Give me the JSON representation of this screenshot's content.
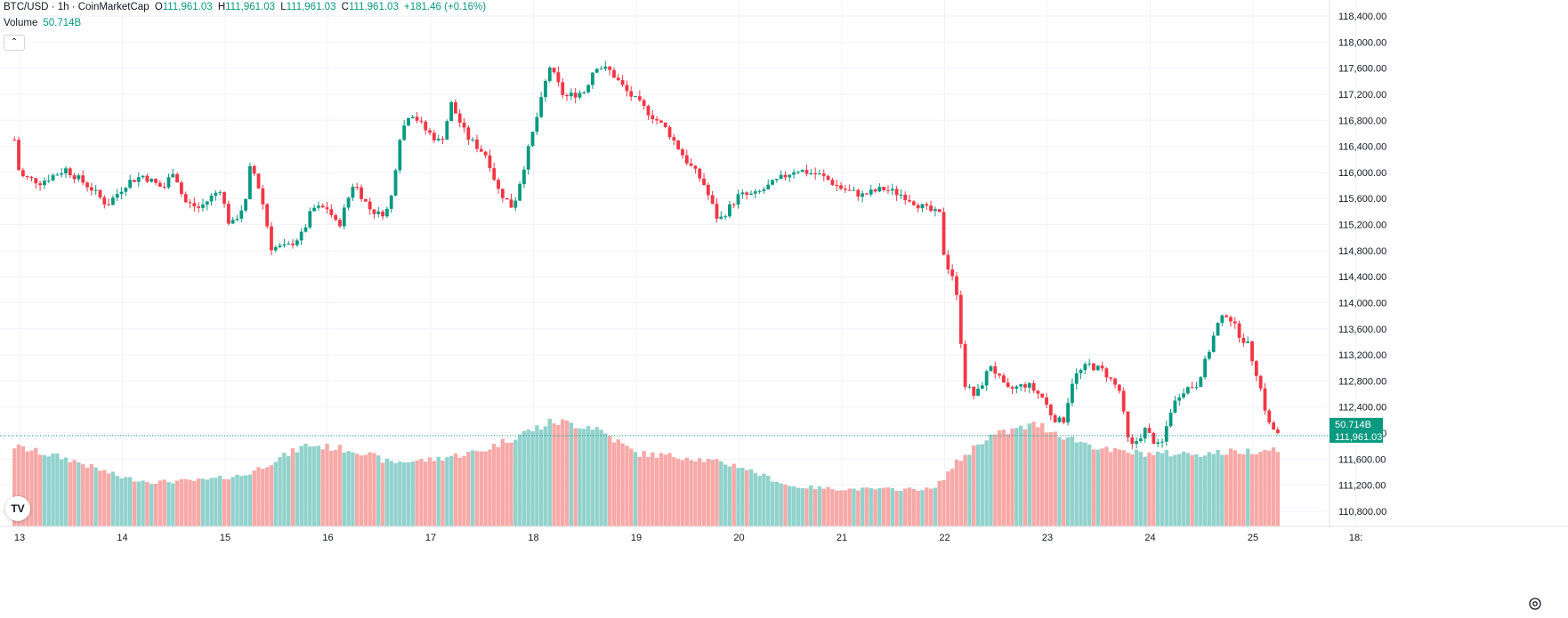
{
  "header": {
    "symbol": "BTC/USD · 1h · CoinMarketCap",
    "o_label": "O",
    "o_value": "111,961.03",
    "h_label": "H",
    "h_value": "111,961.03",
    "l_label": "L",
    "l_value": "111,961.03",
    "c_label": "C",
    "c_value": "111,961.03",
    "change": "+181.46 (+0.16%)"
  },
  "volume_legend": {
    "label": "Volume",
    "value": "50.714B"
  },
  "collapse_icon": "chevron-up-icon",
  "logo": "tradingview-logo",
  "colors": {
    "up": "#089981",
    "down": "#f23645",
    "vol_up": "#92d2cc",
    "vol_down": "#f7a9a7",
    "grid": "#f0f3fa",
    "text": "#131722"
  },
  "price_labels": {
    "volume_tag": "50.714B",
    "last_price_tag": "111,961.03"
  },
  "chart_data": {
    "type": "candlestick",
    "title": "BTC/USD · 1h · CoinMarketCap",
    "y_axis": {
      "ticks": [
        110800,
        111200,
        111600,
        112000,
        112400,
        112800,
        113200,
        113600,
        114000,
        114400,
        114800,
        115200,
        115600,
        116000,
        116400,
        116800,
        117200,
        117600,
        118000,
        118400
      ],
      "tick_labels": [
        "110,800.00",
        "111,200.00",
        "111,600.00",
        "112,000.00",
        "112,400.00",
        "112,800.00",
        "113,200.00",
        "113,600.00",
        "114,000.00",
        "114,400.00",
        "114,800.00",
        "115,200.00",
        "115,600.00",
        "116,000.00",
        "116,400.00",
        "116,800.00",
        "117,200.00",
        "117,600.00",
        "118,000.00",
        "118,400.00"
      ],
      "range": [
        110600,
        118600
      ]
    },
    "x_axis": {
      "tick_labels": [
        "13",
        "14",
        "15",
        "16",
        "17",
        "18",
        "19",
        "20",
        "21",
        "22",
        "23",
        "24",
        "25",
        "18:"
      ]
    },
    "last_price": 111961.03,
    "close_points": [
      {
        "day": 12.95,
        "close": 116500
      },
      {
        "day": 13.0,
        "close": 115950
      },
      {
        "day": 13.2,
        "close": 115850
      },
      {
        "day": 13.45,
        "close": 116050
      },
      {
        "day": 13.7,
        "close": 115750
      },
      {
        "day": 13.85,
        "close": 115500
      },
      {
        "day": 14.05,
        "close": 115850
      },
      {
        "day": 14.2,
        "close": 115950
      },
      {
        "day": 14.4,
        "close": 115750
      },
      {
        "day": 14.5,
        "close": 116050
      },
      {
        "day": 14.6,
        "close": 115550
      },
      {
        "day": 14.75,
        "close": 115450
      },
      {
        "day": 14.95,
        "close": 115750
      },
      {
        "day": 15.05,
        "close": 115150
      },
      {
        "day": 15.2,
        "close": 115550
      },
      {
        "day": 15.25,
        "close": 116150
      },
      {
        "day": 15.35,
        "close": 115650
      },
      {
        "day": 15.45,
        "close": 114850
      },
      {
        "day": 15.6,
        "close": 114850
      },
      {
        "day": 15.75,
        "close": 115050
      },
      {
        "day": 15.85,
        "close": 115450
      },
      {
        "day": 16.0,
        "close": 115450
      },
      {
        "day": 16.1,
        "close": 115150
      },
      {
        "day": 16.25,
        "close": 115850
      },
      {
        "day": 16.4,
        "close": 115450
      },
      {
        "day": 16.5,
        "close": 115350
      },
      {
        "day": 16.6,
        "close": 115450
      },
      {
        "day": 16.7,
        "close": 116550
      },
      {
        "day": 16.8,
        "close": 116950
      },
      {
        "day": 16.95,
        "close": 116650
      },
      {
        "day": 17.1,
        "close": 116450
      },
      {
        "day": 17.2,
        "close": 117050
      },
      {
        "day": 17.35,
        "close": 116550
      },
      {
        "day": 17.55,
        "close": 116250
      },
      {
        "day": 17.65,
        "close": 115750
      },
      {
        "day": 17.8,
        "close": 115450
      },
      {
        "day": 17.9,
        "close": 116050
      },
      {
        "day": 18.0,
        "close": 116650
      },
      {
        "day": 18.1,
        "close": 117250
      },
      {
        "day": 18.15,
        "close": 117650
      },
      {
        "day": 18.3,
        "close": 117150
      },
      {
        "day": 18.5,
        "close": 117250
      },
      {
        "day": 18.6,
        "close": 117650
      },
      {
        "day": 18.75,
        "close": 117550
      },
      {
        "day": 18.9,
        "close": 117250
      },
      {
        "day": 19.1,
        "close": 116950
      },
      {
        "day": 19.3,
        "close": 116650
      },
      {
        "day": 19.5,
        "close": 116150
      },
      {
        "day": 19.65,
        "close": 115850
      },
      {
        "day": 19.8,
        "close": 115250
      },
      {
        "day": 20.0,
        "close": 115650
      },
      {
        "day": 20.15,
        "close": 115650
      },
      {
        "day": 20.35,
        "close": 115850
      },
      {
        "day": 20.55,
        "close": 116050
      },
      {
        "day": 20.8,
        "close": 115950
      },
      {
        "day": 21.0,
        "close": 115750
      },
      {
        "day": 21.2,
        "close": 115650
      },
      {
        "day": 21.4,
        "close": 115750
      },
      {
        "day": 21.6,
        "close": 115650
      },
      {
        "day": 21.8,
        "close": 115450
      },
      {
        "day": 21.95,
        "close": 115350
      },
      {
        "day": 22.0,
        "close": 114650
      },
      {
        "day": 22.1,
        "close": 114350
      },
      {
        "day": 22.2,
        "close": 112750
      },
      {
        "day": 22.3,
        "close": 112550
      },
      {
        "day": 22.45,
        "close": 113050
      },
      {
        "day": 22.6,
        "close": 112650
      },
      {
        "day": 22.8,
        "close": 112750
      },
      {
        "day": 22.95,
        "close": 112550
      },
      {
        "day": 23.05,
        "close": 112250
      },
      {
        "day": 23.15,
        "close": 112150
      },
      {
        "day": 23.25,
        "close": 112850
      },
      {
        "day": 23.4,
        "close": 113050
      },
      {
        "day": 23.55,
        "close": 112950
      },
      {
        "day": 23.7,
        "close": 112650
      },
      {
        "day": 23.8,
        "close": 111750
      },
      {
        "day": 23.95,
        "close": 112050
      },
      {
        "day": 24.1,
        "close": 111750
      },
      {
        "day": 24.2,
        "close": 112350
      },
      {
        "day": 24.3,
        "close": 112650
      },
      {
        "day": 24.45,
        "close": 112750
      },
      {
        "day": 24.55,
        "close": 113150
      },
      {
        "day": 24.65,
        "close": 113650
      },
      {
        "day": 24.75,
        "close": 113850
      },
      {
        "day": 24.85,
        "close": 113550
      },
      {
        "day": 24.95,
        "close": 113350
      },
      {
        "day": 25.05,
        "close": 112850
      },
      {
        "day": 25.15,
        "close": 112150
      },
      {
        "day": 25.25,
        "close": 111961.03
      }
    ],
    "volume_profile": [
      {
        "day": 12.95,
        "h": 0.9
      },
      {
        "day": 13.5,
        "h": 0.75
      },
      {
        "day": 14.0,
        "h": 0.55
      },
      {
        "day": 14.3,
        "h": 0.5
      },
      {
        "day": 14.8,
        "h": 0.52
      },
      {
        "day": 15.2,
        "h": 0.58
      },
      {
        "day": 15.5,
        "h": 0.75
      },
      {
        "day": 15.8,
        "h": 0.92
      },
      {
        "day": 16.3,
        "h": 0.85
      },
      {
        "day": 16.6,
        "h": 0.72
      },
      {
        "day": 17.0,
        "h": 0.75
      },
      {
        "day": 17.5,
        "h": 0.85
      },
      {
        "day": 17.9,
        "h": 1.05
      },
      {
        "day": 18.2,
        "h": 1.18
      },
      {
        "day": 18.6,
        "h": 1.12
      },
      {
        "day": 19.0,
        "h": 0.82
      },
      {
        "day": 19.5,
        "h": 0.78
      },
      {
        "day": 20.0,
        "h": 0.68
      },
      {
        "day": 20.5,
        "h": 0.45
      },
      {
        "day": 21.0,
        "h": 0.42
      },
      {
        "day": 21.5,
        "h": 0.42
      },
      {
        "day": 21.9,
        "h": 0.42
      },
      {
        "day": 22.1,
        "h": 0.7
      },
      {
        "day": 22.4,
        "h": 1.0
      },
      {
        "day": 22.9,
        "h": 1.15
      },
      {
        "day": 23.2,
        "h": 1.0
      },
      {
        "day": 23.6,
        "h": 0.85
      },
      {
        "day": 24.0,
        "h": 0.82
      },
      {
        "day": 24.5,
        "h": 0.82
      },
      {
        "day": 25.0,
        "h": 0.85
      },
      {
        "day": 25.25,
        "h": 0.88
      }
    ],
    "grid": true
  }
}
